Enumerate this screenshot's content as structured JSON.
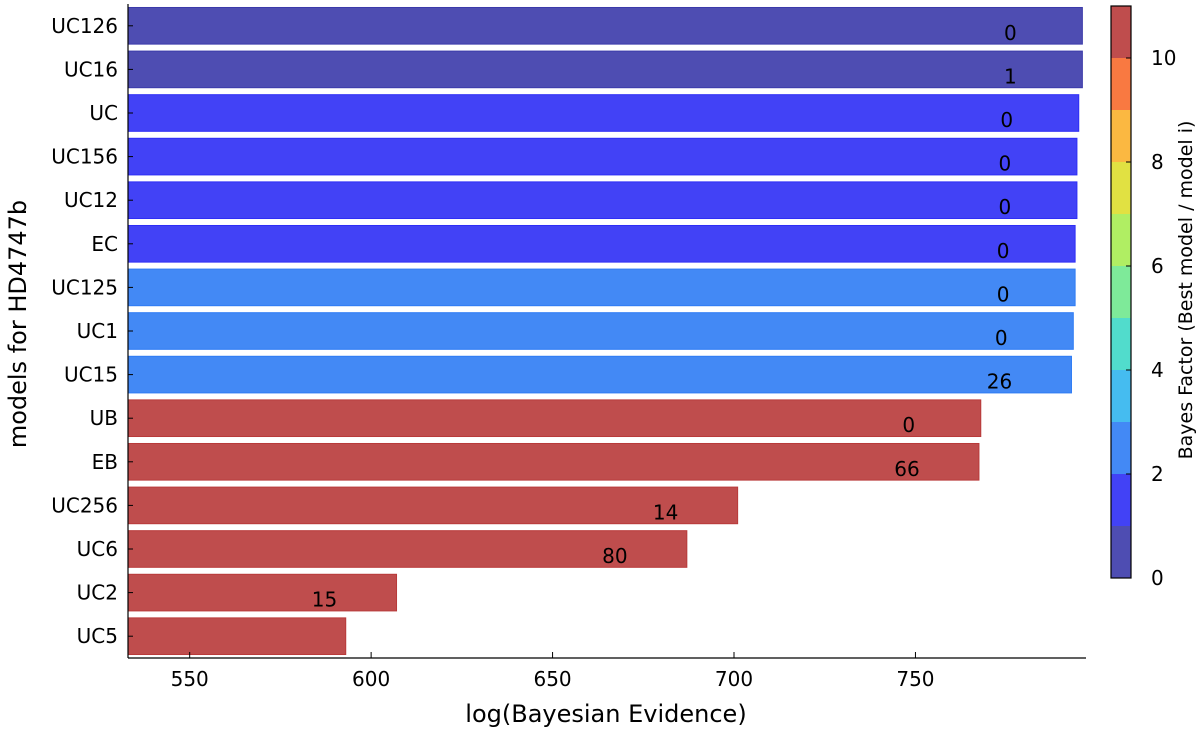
{
  "chart_data": {
    "type": "bar",
    "orientation": "horizontal",
    "xlabel": "log(Bayesian Evidence)",
    "ylabel": "models for HD4747b",
    "xlim": [
      533,
      797
    ],
    "xticks": [
      550,
      600,
      650,
      700,
      750
    ],
    "categories": [
      "UC126",
      "UC16",
      "UC",
      "UC156",
      "UC12",
      "EC",
      "UC125",
      "UC1",
      "UC15",
      "UB",
      "EB",
      "UC256",
      "UC6",
      "UC2",
      "UC5"
    ],
    "values": [
      796,
      796,
      795,
      794.5,
      794.5,
      794,
      794,
      793.5,
      793,
      768,
      767.5,
      701,
      687,
      607,
      593
    ],
    "bar_labels": [
      "0",
      "1",
      "0",
      "0",
      "0",
      "0",
      "0",
      "0",
      "26",
      "0",
      "66",
      "14",
      "80",
      "15",
      ""
    ],
    "bayes_factor": [
      0.5,
      0.5,
      1.5,
      1.5,
      1.5,
      1.5,
      2,
      2,
      2.5,
      11,
      11,
      11,
      11,
      11,
      11
    ],
    "colorbar": {
      "label": "Bayes Factor (Best model / model i)",
      "range": [
        0,
        11
      ],
      "ticks": [
        0,
        2,
        4,
        6,
        8,
        10
      ],
      "bands": [
        {
          "from": 0,
          "to": 1,
          "color": "#3b3aaa"
        },
        {
          "from": 1,
          "to": 2,
          "color": "#2e2ef5"
        },
        {
          "from": 2,
          "to": 3,
          "color": "#2f7cf4"
        },
        {
          "from": 3,
          "to": 4,
          "color": "#31b5ee"
        },
        {
          "from": 4,
          "to": 5,
          "color": "#3ed8c6"
        },
        {
          "from": 5,
          "to": 6,
          "color": "#70e88e"
        },
        {
          "from": 6,
          "to": 7,
          "color": "#a7ec52"
        },
        {
          "from": 7,
          "to": 8,
          "color": "#dede2e"
        },
        {
          "from": 8,
          "to": 9,
          "color": "#fbb02c"
        },
        {
          "from": 9,
          "to": 10,
          "color": "#f86a2c"
        },
        {
          "from": 10,
          "to": 11,
          "color": "#b83a3a"
        }
      ]
    },
    "bar_opacity": 0.9
  }
}
